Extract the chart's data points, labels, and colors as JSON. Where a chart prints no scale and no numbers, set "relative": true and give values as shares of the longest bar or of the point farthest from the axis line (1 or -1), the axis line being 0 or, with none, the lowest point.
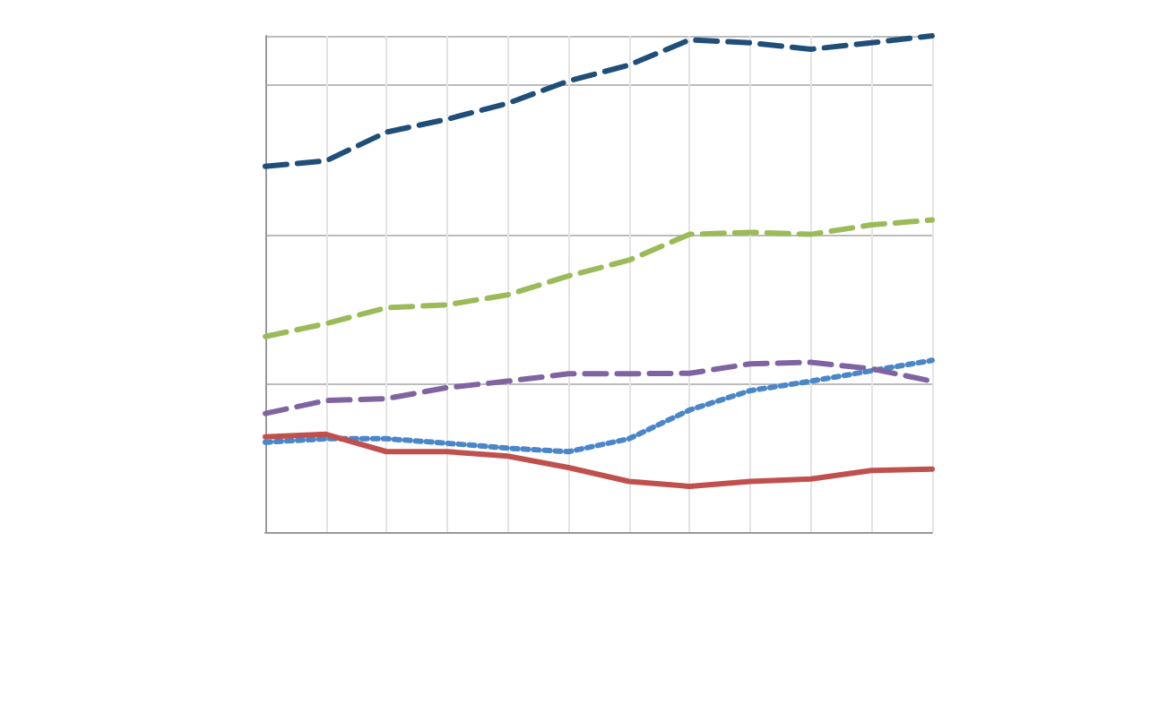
{
  "chart_data": {
    "type": "line",
    "relative": true,
    "grid": true,
    "marker": "none",
    "categories": [
      null,
      null,
      null,
      null,
      null,
      null,
      null,
      null,
      null,
      null,
      null,
      null
    ],
    "series": [
      {
        "color": "#1f4e79",
        "line_style": "dashed",
        "values": [
          0.737,
          0.748,
          0.806,
          0.832,
          0.864,
          0.909,
          0.941,
          0.992,
          0.986,
          0.973,
          0.986,
          1
        ]
      },
      {
        "color": "#4a86c8",
        "line_style": "dotted",
        "values": [
          0.181,
          0.188,
          0.188,
          0.179,
          0.169,
          0.162,
          0.188,
          0.246,
          0.285,
          0.304,
          0.325,
          0.346
        ]
      },
      {
        "color": "#c0504d",
        "line_style": "solid",
        "values": [
          0.192,
          0.197,
          0.162,
          0.162,
          0.153,
          0.13,
          0.102,
          0.092,
          0.102,
          0.107,
          0.124,
          0.127
        ]
      },
      {
        "color": "#9bbb59",
        "line_style": "dashed",
        "values": [
          0.394,
          0.42,
          0.452,
          0.458,
          0.478,
          0.516,
          0.548,
          0.6,
          0.604,
          0.6,
          0.619,
          0.629
        ]
      },
      {
        "color": "#8064a2",
        "line_style": "dashed",
        "values": [
          0.239,
          0.265,
          0.269,
          0.291,
          0.304,
          0.319,
          0.319,
          0.32,
          0.339,
          0.342,
          0.329,
          0.304
        ]
      }
    ]
  }
}
